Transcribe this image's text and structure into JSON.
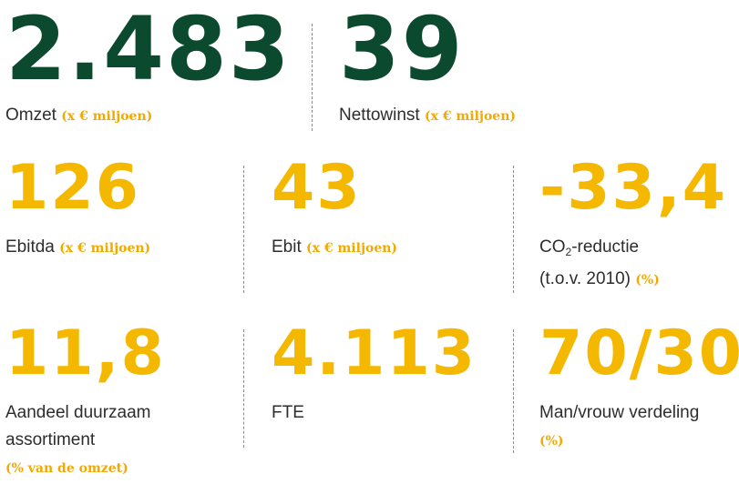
{
  "row1": [
    {
      "value": "2.483",
      "label": "Omzet ",
      "unit": "(x € miljoen)"
    },
    {
      "value": "39",
      "label": "Nettowinst ",
      "unit": "(x € miljoen)"
    }
  ],
  "row2": [
    {
      "value": "126",
      "label": "Ebitda ",
      "unit": "(x € miljoen)"
    },
    {
      "value": "43",
      "label": "Ebit ",
      "unit": "(x € miljoen)"
    },
    {
      "value": "-33,4",
      "label_pre": "CO",
      "label_sub": "2",
      "label_post": "-reductie",
      "label_line2": "(t.o.v. 2010) ",
      "unit": "(%)"
    }
  ],
  "row3": [
    {
      "value": "11,8",
      "label_line1": "Aandeel duurzaam",
      "label_line2": "assortiment",
      "unit": "(% van de omzet)"
    },
    {
      "value": "4.113",
      "label": "FTE"
    },
    {
      "value": "70/30",
      "label": "Man/vrouw verdeling",
      "unit": "(%)"
    }
  ],
  "colors": {
    "headline_green": "#0b4a2e",
    "accent_yellow": "#f5b800",
    "unit_orange": "#f2a900"
  }
}
